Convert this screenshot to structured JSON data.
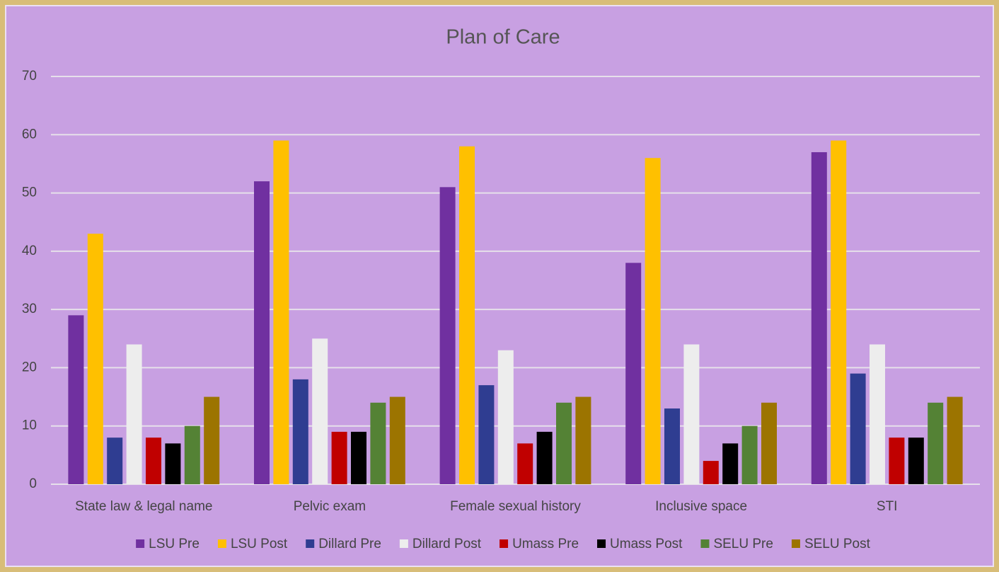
{
  "chart_data": {
    "type": "bar",
    "title": "Plan of Care",
    "categories": [
      "State law & legal name",
      "Pelvic exam",
      "Female sexual history",
      "Inclusive space",
      "STI"
    ],
    "series": [
      {
        "name": "LSU Pre",
        "color": "#7030a0",
        "values": [
          29,
          52,
          51,
          38,
          57
        ]
      },
      {
        "name": "LSU Post",
        "color": "#ffc000",
        "values": [
          43,
          59,
          58,
          56,
          59
        ]
      },
      {
        "name": "Dillard Pre",
        "color": "#2f3d91",
        "values": [
          8,
          18,
          17,
          13,
          19
        ]
      },
      {
        "name": "Dillard Post",
        "color": "#ededed",
        "values": [
          24,
          25,
          23,
          24,
          24
        ]
      },
      {
        "name": "Umass Pre",
        "color": "#c00000",
        "values": [
          8,
          9,
          7,
          4,
          8
        ]
      },
      {
        "name": "Umass Post",
        "color": "#000000",
        "values": [
          7,
          9,
          9,
          7,
          8
        ]
      },
      {
        "name": "SELU Pre",
        "color": "#548235",
        "values": [
          10,
          14,
          14,
          10,
          14
        ]
      },
      {
        "name": "SELU Post",
        "color": "#9c7400",
        "values": [
          15,
          15,
          15,
          14,
          15
        ]
      }
    ],
    "ylim": [
      0,
      70
    ],
    "yticks": [
      0,
      10,
      20,
      30,
      40,
      50,
      60,
      70
    ],
    "grid": true,
    "legend": "bottom"
  }
}
